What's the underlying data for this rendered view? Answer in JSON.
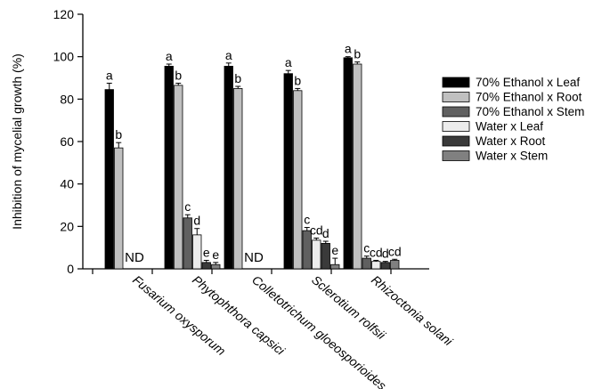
{
  "chart_data": {
    "type": "bar",
    "ylabel": "Inhibition of mycelial growth (%)",
    "ylim": [
      0,
      120
    ],
    "yticks": [
      0,
      20,
      40,
      60,
      80,
      100,
      120
    ],
    "grid": false,
    "legend_position": "right",
    "categories": [
      "Fusarium oxysporum",
      "Phytophthora capsici",
      "Colletotrichum gloeosporioides",
      "Sclerotium rolfsii",
      "Rhizoctonia solani"
    ],
    "series": [
      {
        "name": "70% Ethanol x Leaf",
        "color": "#000000",
        "values": [
          84.5,
          95.5,
          95.5,
          92.0,
          99.5
        ],
        "errors": [
          3.0,
          1.0,
          1.5,
          1.5,
          0.5
        ],
        "labels": [
          "a",
          "a",
          "a",
          "a",
          "a"
        ]
      },
      {
        "name": "70% Ethanol x Root",
        "color": "#c0c0c0",
        "values": [
          57.0,
          86.5,
          85.0,
          84.0,
          96.5
        ],
        "errors": [
          2.5,
          1.0,
          1.0,
          1.0,
          1.0
        ],
        "labels": [
          "b",
          "b",
          "b",
          "b",
          "b"
        ]
      },
      {
        "name": "70% Ethanol x Stem",
        "color": "#606060",
        "values": [
          null,
          24.0,
          null,
          18.0,
          5.0
        ],
        "errors": [
          null,
          1.5,
          null,
          1.5,
          1.0
        ],
        "labels": [
          "",
          "c",
          "",
          "c",
          "c"
        ]
      },
      {
        "name": "Water x Leaf",
        "color": "#ececec",
        "values": [
          null,
          16.0,
          null,
          13.5,
          3.5
        ],
        "errors": [
          null,
          3.0,
          null,
          1.0,
          0.5
        ],
        "labels": [
          "",
          "d",
          "",
          "cd",
          "cd"
        ]
      },
      {
        "name": "Water x Root",
        "color": "#3a3a3a",
        "values": [
          null,
          3.0,
          null,
          12.0,
          3.0
        ],
        "errors": [
          null,
          1.0,
          null,
          1.0,
          0.5
        ],
        "labels": [
          "",
          "e",
          "",
          "d",
          "d"
        ]
      },
      {
        "name": "Water x Stem",
        "color": "#808080",
        "values": [
          null,
          2.0,
          null,
          2.0,
          4.0
        ],
        "errors": [
          null,
          1.0,
          null,
          3.0,
          0.5
        ],
        "labels": [
          "",
          "e",
          "",
          "e",
          "cd"
        ]
      }
    ],
    "annotations": [
      {
        "category": "Fusarium oxysporum",
        "text": "ND"
      },
      {
        "category": "Colletotrichum gloeosporioides",
        "text": "ND"
      }
    ]
  }
}
